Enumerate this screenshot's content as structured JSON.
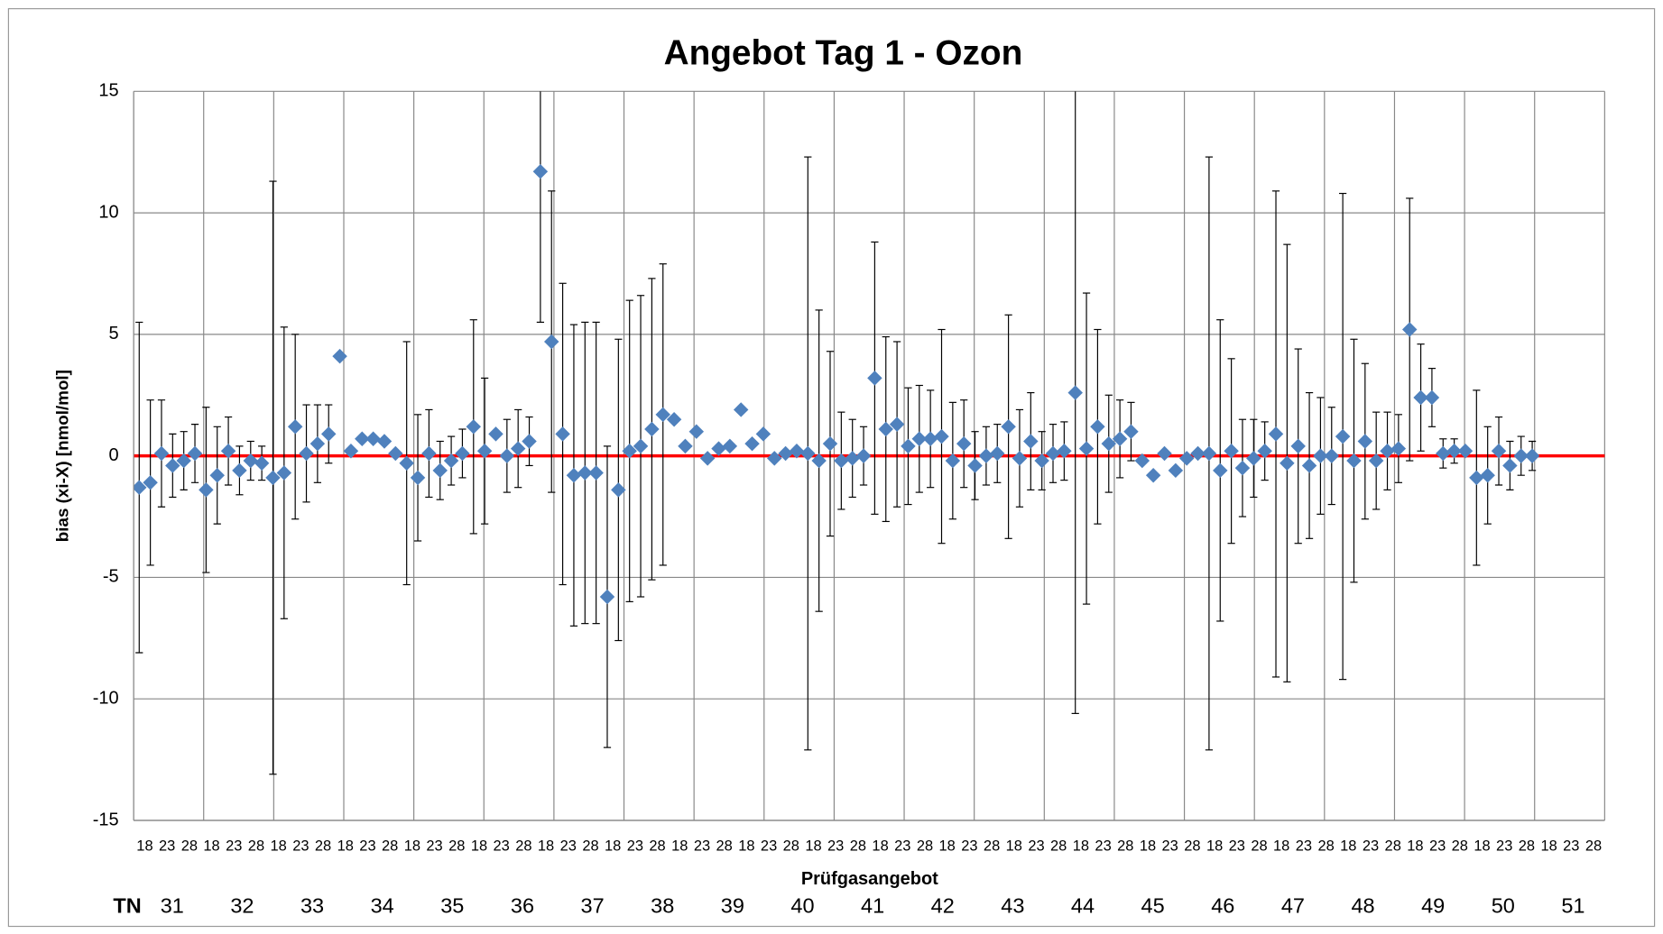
{
  "chart_data": {
    "type": "scatter",
    "title": "Angebot Tag 1 - Ozon",
    "y_label": "bias (xi-X) [nmol/mol]",
    "x_label": "Prüfgasangebot",
    "group_row_label": "TN",
    "groups": [
      "31",
      "32",
      "33",
      "34",
      "35",
      "36",
      "37",
      "38",
      "39",
      "40",
      "41",
      "42",
      "43",
      "44",
      "45",
      "46",
      "47",
      "48",
      "49",
      "50",
      "51"
    ],
    "categories": [
      "18",
      null,
      "23",
      null,
      "28",
      null,
      "18",
      null,
      "23",
      null,
      "28",
      null,
      "18",
      null,
      "23",
      null,
      "28",
      null,
      "18",
      null,
      "23",
      null,
      "28",
      null,
      "18",
      null,
      "23",
      null,
      "28",
      null,
      "18",
      null,
      "23",
      null,
      "28",
      null,
      "18",
      null,
      "23",
      null,
      "28",
      null,
      "18",
      null,
      "23",
      null,
      "28",
      null,
      "18",
      null,
      "23",
      null,
      "28",
      null,
      "18",
      null,
      "23",
      null,
      "28",
      null,
      "18",
      null,
      "23",
      null,
      "28",
      null,
      "18",
      null,
      "23",
      null,
      "28",
      null,
      "18",
      null,
      "23",
      null,
      "28",
      null,
      "18",
      null,
      "23",
      null,
      "28",
      null,
      "18",
      null,
      "23",
      null,
      "28",
      null,
      "18",
      null,
      "23",
      null,
      "28",
      null,
      "18",
      null,
      "23",
      null,
      "28",
      null,
      "18",
      null,
      "23",
      null,
      "28",
      null,
      "18",
      null,
      "23",
      null,
      "28",
      null,
      "18",
      null,
      "23",
      null,
      "28",
      null,
      "18",
      null,
      "23",
      null,
      "28",
      null,
      "18",
      null,
      "23",
      null,
      "28",
      null
    ],
    "series": [
      {
        "color": "#4f81bd",
        "values": [
          -1.3,
          -1.1,
          0.1,
          -0.4,
          -0.2,
          0.1,
          -1.4,
          -0.8,
          0.2,
          -0.6,
          -0.2,
          -0.3,
          -0.9,
          -0.7,
          1.2,
          0.1,
          0.5,
          0.9,
          4.1,
          0.2,
          0.7,
          0.7,
          0.6,
          0.1,
          -0.3,
          -0.9,
          0.1,
          -0.6,
          -0.2,
          0.1,
          1.2,
          0.2,
          0.9,
          0.0,
          0.3,
          0.6,
          11.7,
          4.7,
          0.9,
          -0.8,
          -0.7,
          -0.7,
          -5.8,
          -1.4,
          0.2,
          0.4,
          1.1,
          1.7,
          1.5,
          0.4,
          1.0,
          -0.1,
          0.3,
          0.4,
          1.9,
          0.5,
          0.9,
          -0.1,
          0.1,
          0.2,
          0.1,
          -0.2,
          0.5,
          -0.2,
          -0.1,
          0.0,
          3.2,
          1.1,
          1.3,
          0.4,
          0.7,
          0.7,
          0.8,
          -0.2,
          0.5,
          -0.4,
          0.0,
          0.1,
          1.2,
          -0.1,
          0.6,
          -0.2,
          0.1,
          0.2,
          2.6,
          0.3,
          1.2,
          0.5,
          0.7,
          1.0,
          -0.2,
          -0.8,
          0.1,
          -0.6,
          -0.1,
          0.1,
          0.1,
          -0.6,
          0.2,
          -0.5,
          -0.1,
          0.2,
          0.9,
          -0.3,
          0.4,
          -0.4,
          0.0,
          0.0,
          0.8,
          -0.2,
          0.6,
          -0.2,
          0.2,
          0.3,
          5.2,
          2.4,
          2.4,
          0.1,
          0.2,
          0.2,
          -0.9,
          -0.8,
          0.2,
          -0.4,
          0.0,
          0.0
        ],
        "errors": [
          6.8,
          3.4,
          2.2,
          1.3,
          1.2,
          1.2,
          3.4,
          2.0,
          1.4,
          1.0,
          0.8,
          0.7,
          12.2,
          6.0,
          3.8,
          2.0,
          1.6,
          1.2,
          0,
          0,
          0,
          0,
          0,
          0,
          5.0,
          2.6,
          1.8,
          1.2,
          1.0,
          1.0,
          4.4,
          3.0,
          0,
          1.5,
          1.6,
          1.0,
          6.2,
          6.2,
          6.2,
          6.2,
          6.2,
          6.2,
          6.2,
          6.2,
          6.2,
          6.2,
          6.2,
          6.2,
          0,
          0,
          0,
          0,
          0,
          0,
          0,
          0,
          0,
          0,
          0,
          0,
          12.2,
          6.2,
          3.8,
          2.0,
          1.6,
          1.2,
          5.6,
          3.8,
          3.4,
          2.4,
          2.2,
          2.0,
          4.4,
          2.4,
          1.8,
          1.4,
          1.2,
          1.2,
          4.6,
          2.0,
          2.0,
          1.2,
          1.2,
          1.2,
          13.2,
          6.4,
          4.0,
          2.0,
          1.6,
          1.2,
          0,
          0,
          0,
          0,
          0,
          0,
          12.2,
          6.2,
          3.8,
          2.0,
          1.6,
          1.2,
          10.0,
          9.0,
          4.0,
          3.0,
          2.4,
          2.0,
          10.0,
          5.0,
          3.2,
          2.0,
          1.6,
          1.4,
          5.4,
          2.2,
          1.2,
          0.6,
          0.5,
          0,
          3.6,
          2.0,
          1.4,
          1.0,
          0.8,
          0.6
        ]
      }
    ],
    "reference_line": {
      "value": 0,
      "color": "#ff0000"
    },
    "ylim": [
      -15,
      15
    ],
    "yticks": [
      15,
      10,
      5,
      0,
      -5,
      -10,
      -15
    ],
    "grid": true
  }
}
